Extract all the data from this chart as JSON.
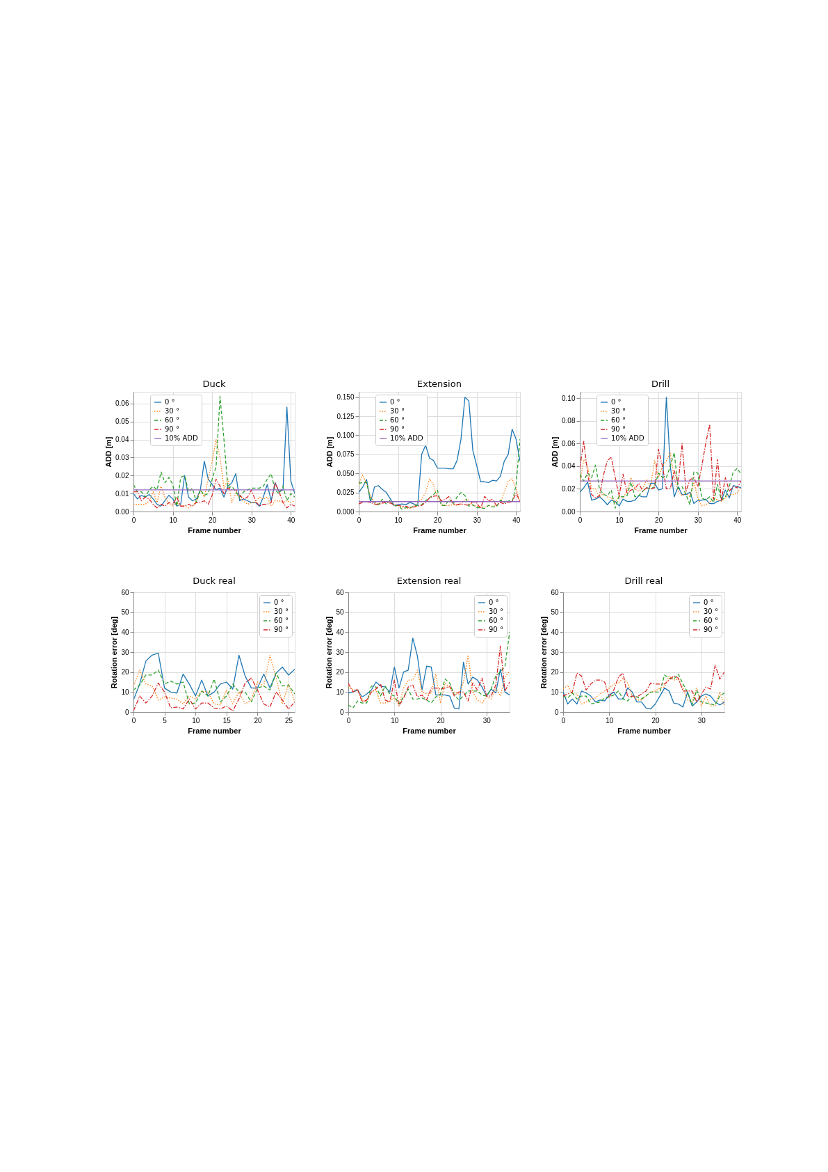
{
  "chart_data": [
    {
      "type": "line",
      "title": "Duck",
      "xlabel": "Frame number",
      "ylabel": "ADD [m]",
      "legend": "top left",
      "grid": true,
      "xlim": [
        0,
        41
      ],
      "ylim": [
        0,
        0.0665
      ],
      "xticks": [
        0,
        10,
        20,
        30,
        40
      ],
      "yticks": [
        {
          "value": 0,
          "label": "0.00"
        },
        0.01,
        0.02,
        0.03,
        0.04,
        0.05,
        0.06
      ],
      "x": [
        0,
        1,
        2,
        3,
        4,
        5,
        6,
        7,
        8,
        9,
        10,
        11,
        12,
        13,
        14,
        15,
        16,
        17,
        18,
        19,
        20,
        21,
        22,
        23,
        24,
        25,
        26,
        27,
        28,
        29,
        30,
        31,
        32,
        33,
        34,
        35,
        36,
        37,
        38,
        39,
        40,
        41
      ],
      "series": [
        {
          "name": "0 °",
          "color": "#1f77b4",
          "line_style": "solid",
          "values": [
            0.01,
            0.007,
            0.009,
            0.008,
            0.0095,
            0.007,
            0.004,
            0.003,
            0.006,
            0.009,
            0.007,
            0.003,
            0.004,
            0.02,
            0.008,
            0.006,
            0.007,
            0.012,
            0.028,
            0.018,
            0.015,
            0.012,
            0.013,
            0.008,
            0.014,
            0.016,
            0.021,
            0.006,
            0.007,
            0.006,
            0.005,
            0.005,
            0.003,
            0.008,
            0.015,
            0.006,
            0.016,
            0.011,
            0.012,
            0.058,
            0.017,
            0.01
          ]
        },
        {
          "name": "30 °",
          "color": "#ff7f0e",
          "line_style": "dotted",
          "values": [
            0.004,
            0.004,
            0.004,
            0.004,
            0.006,
            0.011,
            0.005,
            0.014,
            0.008,
            0.004,
            0.003,
            0.005,
            0.003,
            0.003,
            0.002,
            0.003,
            0.006,
            0.012,
            0.008,
            0.018,
            0.028,
            0.04,
            0.03,
            0.013,
            0.018,
            0.005,
            0.01,
            0.007,
            0.006,
            0.004,
            0.005,
            0.005,
            0.008,
            0.007,
            0.008,
            0.003,
            0.006,
            0.006,
            0.005,
            0.006,
            0.005,
            0.006
          ]
        },
        {
          "name": "60 °",
          "color": "#2ca02c",
          "line_style": "dashed",
          "values": [
            0.015,
            0.011,
            0.011,
            0.008,
            0.012,
            0.014,
            0.012,
            0.022,
            0.016,
            0.019,
            0.015,
            0.003,
            0.019,
            0.02,
            0.011,
            0.013,
            0.005,
            0.012,
            0.009,
            0.01,
            0.018,
            0.025,
            0.064,
            0.04,
            0.013,
            0.014,
            0.011,
            0.008,
            0.011,
            0.012,
            0.013,
            0.013,
            0.013,
            0.014,
            0.018,
            0.021,
            0.012,
            0.01,
            0.014,
            0.006,
            0.01,
            0.008
          ]
        },
        {
          "name": "90 °",
          "color": "#d62728",
          "line_style": "dashdot",
          "values": [
            0.011,
            0.011,
            0.006,
            0.008,
            0.007,
            0.004,
            0.002,
            0.004,
            0.003,
            0.005,
            0.004,
            0.008,
            0.003,
            0.003,
            0.004,
            0.003,
            0.005,
            0.005,
            0.006,
            0.004,
            0.009,
            0.018,
            0.014,
            0.01,
            0.013,
            0.012,
            0.012,
            0.009,
            0.007,
            0.008,
            0.012,
            0.006,
            0.003,
            0.004,
            0.004,
            0.005,
            0.016,
            0.011,
            0.005,
            0.002,
            0.004,
            0.003
          ]
        }
      ],
      "ref_lines": [
        {
          "axis": "y",
          "value": 0.012,
          "label": "10% ADD",
          "color": "#9467bd",
          "line_style": "solid"
        }
      ]
    },
    {
      "type": "line",
      "title": "Extension",
      "xlabel": "Frame number",
      "ylabel": "ADD [m]",
      "legend": "top left",
      "grid": true,
      "xlim": [
        0,
        41
      ],
      "ylim": [
        0,
        0.157
      ],
      "xticks": [
        0,
        10,
        20,
        30,
        40
      ],
      "yticks": [
        {
          "value": 0,
          "label": "0.000"
        },
        0.025,
        {
          "value": 0.05,
          "label": "0.050"
        },
        0.075,
        {
          "value": 0.1,
          "label": "0.100"
        },
        0.125,
        {
          "value": 0.15,
          "label": "0.150"
        }
      ],
      "x": [
        0,
        1,
        2,
        3,
        4,
        5,
        6,
        7,
        8,
        9,
        10,
        11,
        12,
        13,
        14,
        15,
        16,
        17,
        18,
        19,
        20,
        21,
        22,
        23,
        24,
        25,
        26,
        27,
        28,
        29,
        30,
        31,
        32,
        33,
        34,
        35,
        36,
        37,
        38,
        39,
        40,
        41
      ],
      "series": [
        {
          "name": "0 °",
          "color": "#1f77b4",
          "line_style": "solid",
          "values": [
            0.025,
            0.032,
            0.042,
            0.012,
            0.032,
            0.034,
            0.029,
            0.025,
            0.017,
            0.008,
            0.009,
            0.01,
            0.009,
            0.012,
            0.01,
            0.008,
            0.075,
            0.087,
            0.07,
            0.067,
            0.057,
            0.057,
            0.057,
            0.056,
            0.056,
            0.067,
            0.095,
            0.15,
            0.145,
            0.08,
            0.06,
            0.039,
            0.039,
            0.038,
            0.041,
            0.04,
            0.046,
            0.066,
            0.075,
            0.108,
            0.095,
            0.066
          ]
        },
        {
          "name": "30 °",
          "color": "#ff7f0e",
          "line_style": "dotted",
          "values": [
            0.035,
            0.048,
            0.036,
            0.02,
            0.012,
            0.01,
            0.012,
            0.013,
            0.012,
            0.008,
            0.008,
            0.006,
            0.005,
            0.004,
            0.007,
            0.012,
            0.016,
            0.025,
            0.043,
            0.035,
            0.018,
            0.01,
            0.008,
            0.008,
            0.009,
            0.008,
            0.01,
            0.016,
            0.015,
            0.008,
            0.007,
            0.006,
            0.006,
            0.008,
            0.007,
            0.008,
            0.012,
            0.025,
            0.04,
            0.043,
            0.03,
            0.011
          ]
        },
        {
          "name": "60 °",
          "color": "#2ca02c",
          "line_style": "dashed",
          "values": [
            0.037,
            0.038,
            0.038,
            0.015,
            0.012,
            0.009,
            0.016,
            0.01,
            0.015,
            0.007,
            0.008,
            0.003,
            0.005,
            0.005,
            0.007,
            0.008,
            0.009,
            0.014,
            0.018,
            0.022,
            0.028,
            0.008,
            0.008,
            0.016,
            0.01,
            0.019,
            0.025,
            0.021,
            0.007,
            0.009,
            0.005,
            0.005,
            0.004,
            0.008,
            0.006,
            0.006,
            0.015,
            0.012,
            0.015,
            0.012,
            0.035,
            0.095
          ]
        },
        {
          "name": "90 °",
          "color": "#d62728",
          "line_style": "dashdot",
          "values": [
            0.01,
            0.012,
            0.013,
            0.012,
            0.01,
            0.009,
            0.011,
            0.012,
            0.011,
            0.009,
            0.008,
            0.007,
            0.007,
            0.005,
            0.006,
            0.007,
            0.008,
            0.012,
            0.018,
            0.02,
            0.021,
            0.014,
            0.016,
            0.02,
            0.01,
            0.009,
            0.01,
            0.009,
            0.008,
            0.013,
            0.011,
            0.004,
            0.02,
            0.014,
            0.016,
            0.008,
            0.012,
            0.01,
            0.012,
            0.013,
            0.024,
            0.013
          ]
        }
      ],
      "ref_lines": [
        {
          "axis": "y",
          "value": 0.013,
          "label": "10% ADD",
          "color": "#9467bd",
          "line_style": "solid"
        }
      ]
    },
    {
      "type": "line",
      "title": "Drill",
      "xlabel": "Frame number",
      "ylabel": "ADD [m]",
      "legend": "top left",
      "grid": true,
      "xlim": [
        0,
        41
      ],
      "ylim": [
        0,
        0.1057
      ],
      "xticks": [
        0,
        10,
        20,
        30,
        40
      ],
      "yticks": [
        {
          "value": 0,
          "label": "0.00"
        },
        0.02,
        0.04,
        0.06,
        0.08,
        {
          "value": 0.1,
          "label": "0.10"
        }
      ],
      "x": [
        0,
        1,
        2,
        3,
        4,
        5,
        6,
        7,
        8,
        9,
        10,
        11,
        12,
        13,
        14,
        15,
        16,
        17,
        18,
        19,
        20,
        21,
        22,
        23,
        24,
        25,
        26,
        27,
        28,
        29,
        30,
        31,
        32,
        33,
        34,
        35,
        36,
        37,
        38,
        39,
        40,
        41
      ],
      "series": [
        {
          "name": "0 °",
          "color": "#1f77b4",
          "line_style": "solid",
          "values": [
            0.017,
            0.021,
            0.026,
            0.01,
            0.011,
            0.013,
            0.01,
            0.006,
            0.01,
            0.009,
            0.005,
            0.011,
            0.009,
            0.009,
            0.01,
            0.014,
            0.013,
            0.013,
            0.025,
            0.025,
            0.019,
            0.02,
            0.101,
            0.04,
            0.013,
            0.022,
            0.015,
            0.015,
            0.017,
            0.007,
            0.01,
            0.01,
            0.011,
            0.007,
            0.007,
            0.009,
            0.01,
            0.019,
            0.012,
            0.023,
            0.022,
            0.021
          ]
        },
        {
          "name": "30 °",
          "color": "#ff7f0e",
          "line_style": "dotted",
          "values": [
            0.025,
            0.046,
            0.04,
            0.02,
            0.02,
            0.013,
            0.016,
            0.013,
            0.012,
            0.008,
            0.013,
            0.012,
            0.018,
            0.03,
            0.02,
            0.018,
            0.021,
            0.028,
            0.022,
            0.045,
            0.03,
            0.04,
            0.045,
            0.052,
            0.03,
            0.018,
            0.014,
            0.016,
            0.013,
            0.026,
            0.012,
            0.005,
            0.006,
            0.008,
            0.013,
            0.01,
            0.009,
            0.012,
            0.015,
            0.015,
            0.016,
            0.022
          ]
        },
        {
          "name": "60 °",
          "color": "#2ca02c",
          "line_style": "dashed",
          "values": [
            0.033,
            0.027,
            0.034,
            0.03,
            0.041,
            0.02,
            0.015,
            0.014,
            0.019,
            0.003,
            0.014,
            0.013,
            0.014,
            0.026,
            0.013,
            0.014,
            0.018,
            0.021,
            0.02,
            0.022,
            0.034,
            0.03,
            0.03,
            0.04,
            0.052,
            0.02,
            0.022,
            0.015,
            0.006,
            0.035,
            0.034,
            0.012,
            0.01,
            0.013,
            0.008,
            0.024,
            0.01,
            0.013,
            0.022,
            0.035,
            0.038,
            0.033
          ]
        },
        {
          "name": "90 °",
          "color": "#d62728",
          "line_style": "dashdot",
          "values": [
            0.038,
            0.062,
            0.033,
            0.015,
            0.012,
            0.014,
            0.032,
            0.045,
            0.048,
            0.03,
            0.014,
            0.033,
            0.016,
            0.019,
            0.02,
            0.025,
            0.018,
            0.021,
            0.02,
            0.021,
            0.055,
            0.04,
            0.02,
            0.02,
            0.036,
            0.025,
            0.06,
            0.018,
            0.028,
            0.03,
            0.022,
            0.04,
            0.06,
            0.077,
            0.011,
            0.046,
            0.01,
            0.03,
            0.018,
            0.022,
            0.021,
            0.027
          ]
        }
      ],
      "ref_lines": [
        {
          "axis": "y",
          "value": 0.027,
          "label": "10% ADD",
          "color": "#9467bd",
          "line_style": "solid"
        }
      ]
    },
    {
      "type": "line",
      "title": "Duck real",
      "xlabel": "Frame number",
      "ylabel": "Rotation error [deg]",
      "legend": "top right",
      "grid": true,
      "xlim": [
        0,
        26
      ],
      "ylim": [
        0,
        60
      ],
      "xticks": [
        0,
        5,
        10,
        15,
        20,
        25
      ],
      "yticks": [
        0,
        10,
        20,
        30,
        40,
        50,
        60
      ],
      "x": [
        0,
        1,
        2,
        3,
        4,
        5,
        6,
        7,
        8,
        9,
        10,
        11,
        12,
        13,
        14,
        15,
        16,
        17,
        18,
        19,
        20,
        21,
        22,
        23,
        24,
        25,
        26
      ],
      "series": [
        {
          "name": "0 °",
          "color": "#1f77b4",
          "line_style": "solid",
          "values": [
            6,
            14,
            25.5,
            28.5,
            29.5,
            12,
            10,
            9.5,
            19,
            14,
            8,
            16,
            8,
            10,
            14,
            15,
            11.5,
            28.5,
            18,
            12,
            12,
            19,
            12,
            19.5,
            22.5,
            18.5,
            21.5
          ]
        },
        {
          "name": "30 °",
          "color": "#ff7f0e",
          "line_style": "dotted",
          "values": [
            13,
            21,
            14,
            13,
            6,
            7.5,
            7,
            6.5,
            4,
            8,
            6.5,
            10.5,
            10,
            4,
            3.5,
            11,
            4,
            10,
            4,
            6,
            15,
            13,
            28.5,
            17,
            4,
            14,
            5
          ]
        },
        {
          "name": "60 °",
          "color": "#2ca02c",
          "line_style": "dashed",
          "values": [
            11,
            13.5,
            18.5,
            18.5,
            21,
            14,
            15.5,
            14,
            15,
            4,
            4.5,
            10.5,
            8,
            16.5,
            5,
            8,
            14,
            10,
            10,
            5,
            12,
            13,
            11,
            19.5,
            13,
            13.5,
            9
          ]
        },
        {
          "name": "90 °",
          "color": "#d62728",
          "line_style": "dashdot",
          "values": [
            0.5,
            8,
            4.5,
            8,
            14.5,
            10,
            2,
            2.5,
            1.5,
            6.5,
            1.5,
            4.5,
            4.5,
            2,
            1.5,
            3,
            0.5,
            6.5,
            14.5,
            17,
            11,
            4,
            2.5,
            10,
            6,
            1.5,
            5
          ]
        }
      ]
    },
    {
      "type": "line",
      "title": "Extension real",
      "xlabel": "Frame number",
      "ylabel": "Rotation error [deg]",
      "legend": "top right",
      "grid": true,
      "xlim": [
        0,
        35
      ],
      "ylim": [
        0,
        60
      ],
      "xticks": [
        0,
        10,
        20,
        30
      ],
      "yticks": [
        0,
        10,
        20,
        30,
        40,
        50,
        60
      ],
      "x": [
        0,
        1,
        2,
        3,
        4,
        5,
        6,
        7,
        8,
        9,
        10,
        11,
        12,
        13,
        14,
        15,
        16,
        17,
        18,
        19,
        20,
        21,
        22,
        23,
        24,
        25,
        26,
        27,
        28,
        29,
        30,
        31,
        32,
        33,
        34,
        35
      ],
      "series": [
        {
          "name": "0 °",
          "color": "#1f77b4",
          "line_style": "solid",
          "values": [
            9.5,
            10,
            11,
            7.5,
            9,
            11,
            15,
            13,
            12.5,
            10,
            22.5,
            12,
            20,
            21,
            37,
            28,
            11,
            23,
            22.5,
            8.5,
            8.5,
            8.5,
            8,
            2,
            1.5,
            25,
            14,
            17.5,
            16,
            12.5,
            8,
            11.5,
            9.5,
            21.5,
            10,
            8.5
          ]
        },
        {
          "name": "30 °",
          "color": "#ff7f0e",
          "line_style": "dotted",
          "values": [
            13,
            11,
            11,
            6,
            5,
            10,
            11,
            4.5,
            4.5,
            5.5,
            7,
            3.5,
            12,
            16,
            16,
            21,
            10,
            9,
            9.5,
            19,
            4.5,
            14.5,
            12,
            10,
            9,
            15,
            28.5,
            10,
            6,
            4.5,
            7.5,
            6.5,
            12,
            8,
            17.5,
            20.5
          ]
        },
        {
          "name": "60 °",
          "color": "#2ca02c",
          "line_style": "dashed",
          "values": [
            3.5,
            2,
            5.5,
            4.5,
            4.5,
            13,
            12.5,
            8,
            13,
            9,
            8,
            4,
            7.5,
            11.5,
            6.5,
            6.5,
            7,
            6,
            4.5,
            7.5,
            9,
            16.5,
            14.5,
            8.5,
            6,
            8,
            10.5,
            10.5,
            10.5,
            8.5,
            8,
            11.5,
            18,
            20,
            23,
            40
          ]
        },
        {
          "name": "90 °",
          "color": "#d62728",
          "line_style": "dashdot",
          "values": [
            14.5,
            10,
            11.5,
            5,
            6,
            10,
            11.5,
            14,
            6,
            5,
            16,
            3,
            7,
            12.5,
            13.5,
            7.5,
            8.5,
            6,
            12,
            12,
            11.5,
            12,
            13,
            8,
            10,
            10,
            5.5,
            14.5,
            11,
            17,
            8,
            8,
            13.5,
            33,
            10.5,
            15
          ]
        }
      ]
    },
    {
      "type": "line",
      "title": "Drill real",
      "xlabel": "Frame number",
      "ylabel": "Rotation error [deg]",
      "legend": "top right",
      "grid": true,
      "xlim": [
        0,
        35
      ],
      "ylim": [
        0,
        60
      ],
      "xticks": [
        0,
        10,
        20,
        30
      ],
      "yticks": [
        0,
        10,
        20,
        30,
        40,
        50,
        60
      ],
      "x": [
        0,
        1,
        2,
        3,
        4,
        5,
        6,
        7,
        8,
        9,
        10,
        11,
        12,
        13,
        14,
        15,
        16,
        17,
        18,
        19,
        20,
        21,
        22,
        23,
        24,
        25,
        26,
        27,
        28,
        29,
        30,
        31,
        32,
        33,
        34,
        35
      ],
      "series": [
        {
          "name": "0 °",
          "color": "#1f77b4",
          "line_style": "solid",
          "values": [
            10,
            4,
            6.5,
            4,
            10.5,
            9.5,
            8,
            5,
            6,
            5.5,
            8.5,
            10,
            6.5,
            6.5,
            12,
            10,
            5,
            5,
            2,
            1.5,
            4,
            8,
            12,
            10.5,
            4.5,
            4,
            2.5,
            10,
            3,
            5,
            8,
            9,
            8,
            5,
            3.5,
            5
          ]
        },
        {
          "name": "30 °",
          "color": "#ff7f0e",
          "line_style": "dotted",
          "values": [
            11.5,
            13.5,
            9,
            9,
            4,
            5,
            6.5,
            7,
            9,
            10.5,
            12,
            14,
            14.5,
            17,
            14.5,
            8,
            6,
            6,
            8,
            10,
            10.5,
            12,
            12.5,
            18,
            16,
            16.5,
            12,
            6,
            5,
            12,
            3,
            8,
            3,
            3,
            10,
            3
          ]
        },
        {
          "name": "60 °",
          "color": "#2ca02c",
          "line_style": "dashed",
          "values": [
            8,
            7,
            9.5,
            6.5,
            8,
            8,
            4,
            4.5,
            5,
            7,
            7.5,
            8.5,
            10.5,
            6.5,
            5.5,
            8,
            7.5,
            6.5,
            8,
            10,
            10,
            10,
            18.5,
            17,
            16.5,
            19,
            14,
            10,
            3.5,
            11,
            5,
            4.5,
            4,
            3.5,
            8,
            9.5
          ]
        },
        {
          "name": "90 °",
          "color": "#d62728",
          "line_style": "dashdot",
          "values": [
            8,
            9,
            10,
            19.5,
            18,
            11,
            14,
            16,
            16,
            15,
            7.5,
            11,
            17.5,
            19.5,
            7.5,
            8,
            7.5,
            9,
            10.5,
            14.5,
            14,
            14,
            14,
            16,
            18,
            17,
            10.5,
            10.5,
            10.5,
            5,
            9,
            12.5,
            11.5,
            23.5,
            16.5,
            20
          ]
        }
      ]
    }
  ]
}
